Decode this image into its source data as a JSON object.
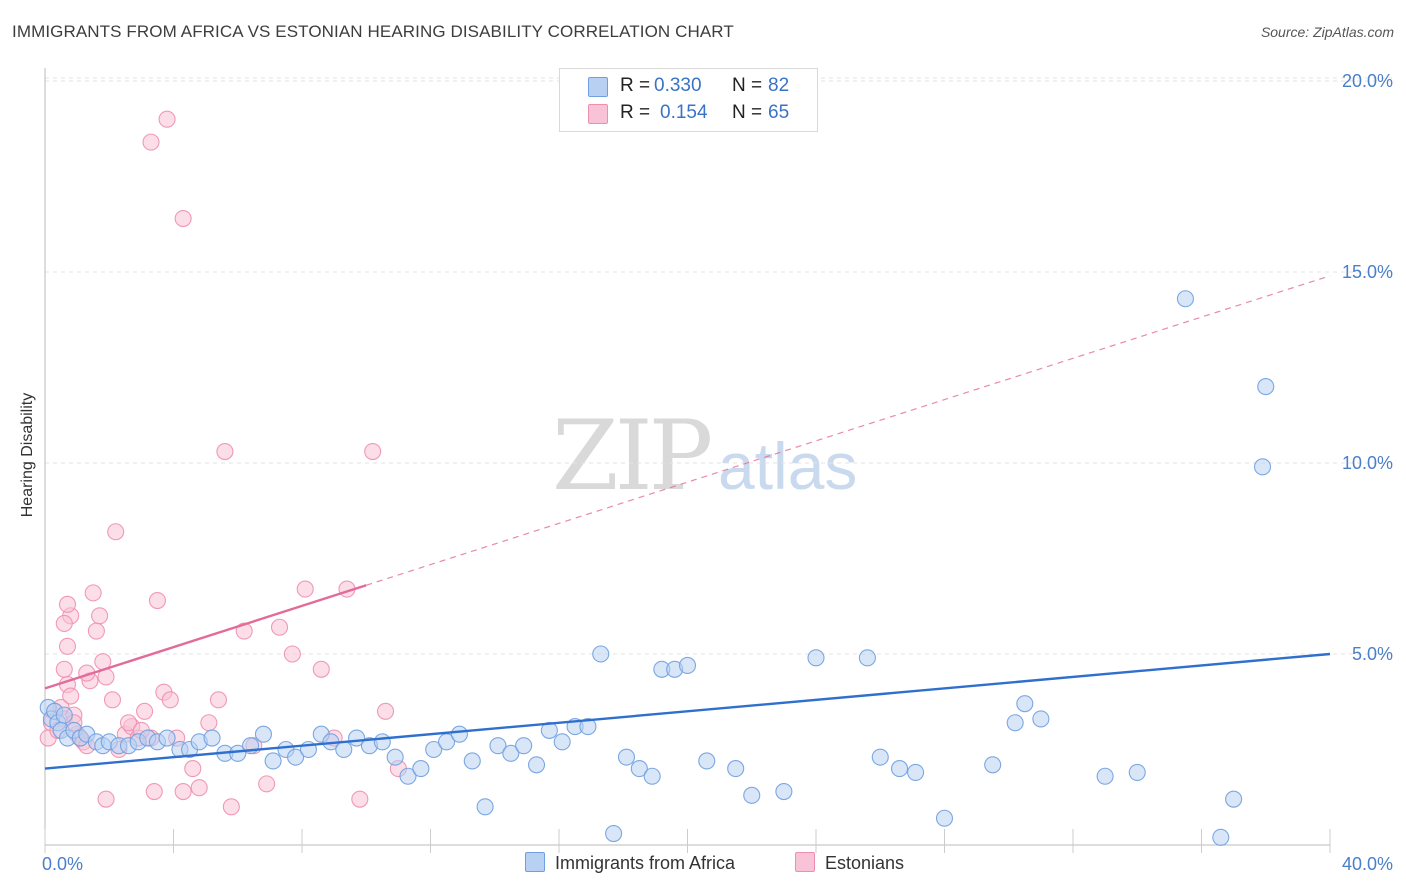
{
  "title": "IMMIGRANTS FROM AFRICA VS ESTONIAN HEARING DISABILITY CORRELATION CHART",
  "source": "Source: ZipAtlas.com",
  "watermark": {
    "zip": "ZIP",
    "atlas": "atlas"
  },
  "legend": {
    "series1": {
      "r_label": "R =",
      "r_value": "0.330",
      "n_label": "N =",
      "n_value": "82"
    },
    "series2": {
      "r_label": "R =",
      "r_value": "0.154",
      "n_label": "N =",
      "n_value": "65"
    }
  },
  "colors": {
    "blue": "#6f9fe0",
    "blue_fill": "#b8d1f3",
    "pink": "#ee8fb0",
    "pink_fill": "#f8c3d6",
    "blue_line": "#2f6fce",
    "pink_line": "#e26b99",
    "tick": "#4a7fc9"
  },
  "chart_data": {
    "type": "scatter",
    "title": "IMMIGRANTS FROM AFRICA VS ESTONIAN HEARING DISABILITY CORRELATION CHART",
    "xlabel": "",
    "ylabel": "Hearing Disability",
    "xlim": [
      0,
      40
    ],
    "ylim": [
      0,
      20.5
    ],
    "x_tick_labels": [
      "0.0%",
      "40.0%"
    ],
    "y_ticks": [
      5,
      10,
      15,
      20
    ],
    "y_tick_labels": [
      "5.0%",
      "10.0%",
      "15.0%",
      "20.0%"
    ],
    "grid": true,
    "legend": [
      "Immigrants from Africa",
      "Estonians"
    ],
    "series": [
      {
        "name": "Immigrants from Africa",
        "r": 0.33,
        "n": 82,
        "trend": {
          "x": [
            0,
            40
          ],
          "y": [
            2.0,
            5.0
          ],
          "style": "solid"
        },
        "points": [
          [
            0.1,
            3.6
          ],
          [
            0.2,
            3.3
          ],
          [
            0.3,
            3.5
          ],
          [
            0.4,
            3.2
          ],
          [
            0.5,
            3.0
          ],
          [
            0.6,
            3.4
          ],
          [
            0.7,
            2.8
          ],
          [
            0.9,
            3.0
          ],
          [
            1.1,
            2.8
          ],
          [
            1.3,
            2.9
          ],
          [
            1.6,
            2.7
          ],
          [
            1.8,
            2.6
          ],
          [
            2.0,
            2.7
          ],
          [
            2.3,
            2.6
          ],
          [
            2.6,
            2.6
          ],
          [
            2.9,
            2.7
          ],
          [
            3.2,
            2.8
          ],
          [
            3.5,
            2.7
          ],
          [
            3.8,
            2.8
          ],
          [
            4.2,
            2.5
          ],
          [
            4.5,
            2.5
          ],
          [
            4.8,
            2.7
          ],
          [
            5.2,
            2.8
          ],
          [
            5.6,
            2.4
          ],
          [
            6.0,
            2.4
          ],
          [
            6.4,
            2.6
          ],
          [
            6.8,
            2.9
          ],
          [
            7.1,
            2.2
          ],
          [
            7.5,
            2.5
          ],
          [
            7.8,
            2.3
          ],
          [
            8.2,
            2.5
          ],
          [
            8.6,
            2.9
          ],
          [
            8.9,
            2.7
          ],
          [
            9.3,
            2.5
          ],
          [
            9.7,
            2.8
          ],
          [
            10.1,
            2.6
          ],
          [
            10.5,
            2.7
          ],
          [
            10.9,
            2.3
          ],
          [
            11.3,
            1.8
          ],
          [
            11.7,
            2.0
          ],
          [
            12.1,
            2.5
          ],
          [
            12.5,
            2.7
          ],
          [
            12.9,
            2.9
          ],
          [
            13.3,
            2.2
          ],
          [
            13.7,
            1.0
          ],
          [
            14.1,
            2.6
          ],
          [
            14.5,
            2.4
          ],
          [
            14.9,
            2.6
          ],
          [
            15.3,
            2.1
          ],
          [
            15.7,
            3.0
          ],
          [
            16.1,
            2.7
          ],
          [
            16.5,
            3.1
          ],
          [
            16.9,
            3.1
          ],
          [
            17.3,
            5.0
          ],
          [
            17.7,
            0.3
          ],
          [
            18.1,
            2.3
          ],
          [
            18.5,
            2.0
          ],
          [
            18.9,
            1.8
          ],
          [
            19.2,
            4.6
          ],
          [
            19.6,
            4.6
          ],
          [
            20.0,
            4.7
          ],
          [
            20.6,
            2.2
          ],
          [
            21.5,
            2.0
          ],
          [
            22.0,
            1.3
          ],
          [
            23.0,
            1.4
          ],
          [
            24.0,
            4.9
          ],
          [
            25.6,
            4.9
          ],
          [
            26.0,
            2.3
          ],
          [
            26.6,
            2.0
          ],
          [
            27.1,
            1.9
          ],
          [
            28.0,
            0.7
          ],
          [
            30.5,
            3.7
          ],
          [
            31.0,
            3.3
          ],
          [
            29.5,
            2.1
          ],
          [
            34.0,
            1.9
          ],
          [
            30.2,
            3.2
          ],
          [
            36.6,
            0.2
          ],
          [
            37.0,
            1.2
          ],
          [
            33.0,
            1.8
          ],
          [
            35.5,
            14.3
          ],
          [
            38.0,
            12.0
          ],
          [
            37.9,
            9.9
          ]
        ]
      },
      {
        "name": "Estonians",
        "r": 0.154,
        "n": 65,
        "trend": {
          "x": [
            0,
            40
          ],
          "y": [
            4.1,
            14.9
          ],
          "style": "solid-then-dashed",
          "solid_to_x": 10.0
        },
        "points": [
          [
            0.1,
            2.8
          ],
          [
            0.2,
            3.2
          ],
          [
            0.3,
            3.5
          ],
          [
            0.4,
            3.0
          ],
          [
            0.5,
            3.6
          ],
          [
            0.6,
            3.3
          ],
          [
            0.7,
            4.2
          ],
          [
            0.8,
            3.9
          ],
          [
            0.9,
            3.4
          ],
          [
            1.0,
            2.9
          ],
          [
            1.1,
            2.8
          ],
          [
            1.2,
            2.7
          ],
          [
            1.3,
            2.6
          ],
          [
            0.6,
            4.6
          ],
          [
            0.7,
            5.2
          ],
          [
            0.8,
            6.0
          ],
          [
            0.6,
            5.8
          ],
          [
            0.7,
            6.3
          ],
          [
            1.4,
            4.3
          ],
          [
            1.5,
            6.6
          ],
          [
            1.6,
            5.6
          ],
          [
            1.7,
            6.0
          ],
          [
            1.8,
            4.8
          ],
          [
            1.9,
            4.4
          ],
          [
            2.1,
            3.8
          ],
          [
            2.3,
            2.5
          ],
          [
            2.5,
            2.9
          ],
          [
            2.7,
            3.1
          ],
          [
            2.9,
            2.8
          ],
          [
            3.1,
            3.5
          ],
          [
            3.3,
            2.8
          ],
          [
            3.5,
            6.4
          ],
          [
            3.7,
            4.0
          ],
          [
            3.9,
            3.8
          ],
          [
            4.1,
            2.8
          ],
          [
            4.3,
            1.4
          ],
          [
            4.6,
            2.0
          ],
          [
            4.8,
            1.5
          ],
          [
            5.1,
            3.2
          ],
          [
            5.4,
            3.8
          ],
          [
            5.8,
            1.0
          ],
          [
            6.2,
            5.6
          ],
          [
            6.5,
            2.6
          ],
          [
            6.9,
            1.6
          ],
          [
            7.3,
            5.7
          ],
          [
            7.7,
            5.0
          ],
          [
            8.1,
            6.7
          ],
          [
            8.6,
            4.6
          ],
          [
            9.0,
            2.8
          ],
          [
            9.4,
            6.7
          ],
          [
            9.8,
            1.2
          ],
          [
            10.2,
            10.3
          ],
          [
            10.6,
            3.5
          ],
          [
            11.0,
            2.0
          ],
          [
            2.2,
            8.2
          ],
          [
            2.6,
            3.2
          ],
          [
            3.0,
            3.0
          ],
          [
            3.4,
            1.4
          ],
          [
            1.3,
            4.5
          ],
          [
            1.9,
            1.2
          ],
          [
            3.8,
            19.0
          ],
          [
            3.3,
            18.4
          ],
          [
            4.3,
            16.4
          ],
          [
            5.6,
            10.3
          ],
          [
            0.9,
            3.2
          ]
        ]
      }
    ]
  }
}
